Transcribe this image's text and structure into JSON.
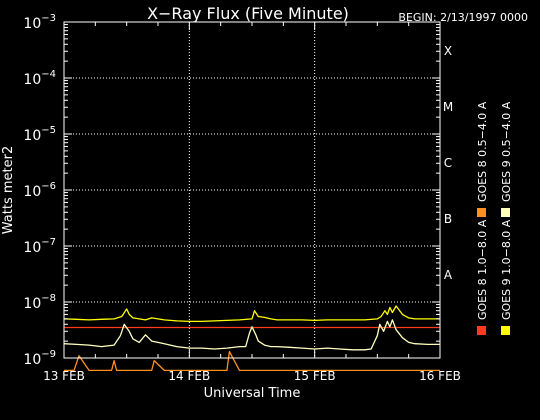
{
  "chart_data": {
    "type": "line",
    "title": "X−Ray Flux (Five Minute)",
    "begin_label": "BEGIN: 2/13/1997 0000",
    "xlabel": "Universal Time",
    "ylabel": "Watts meter2",
    "x_ticks": [
      "13 FEB",
      "14 FEB",
      "15 FEB",
      "16 FEB"
    ],
    "x_range_days": [
      13,
      16
    ],
    "y_scale": "log",
    "ylim": [
      1e-09,
      0.001
    ],
    "y_ticks": [
      {
        "base": "10",
        "exp": "−9",
        "value": 1e-09
      },
      {
        "base": "10",
        "exp": "−8",
        "value": 1e-08
      },
      {
        "base": "10",
        "exp": "−7",
        "value": 1e-07
      },
      {
        "base": "10",
        "exp": "−6",
        "value": 1e-06
      },
      {
        "base": "10",
        "exp": "−5",
        "value": 1e-05
      },
      {
        "base": "10",
        "exp": "−4",
        "value": 0.0001
      },
      {
        "base": "10",
        "exp": "−3",
        "value": 0.001
      }
    ],
    "flare_classes": [
      {
        "label": "A",
        "value": 1e-08
      },
      {
        "label": "B",
        "value": 1e-07
      },
      {
        "label": "C",
        "value": 1e-06
      },
      {
        "label": "M",
        "value": 1e-05
      },
      {
        "label": "X",
        "value": 0.0001
      }
    ],
    "grid": true,
    "series": [
      {
        "name": "GOES 8  1.0−8.0 A",
        "color": "#ff3b1a",
        "x": [
          13.0,
          13.5,
          14.0,
          14.5,
          15.0,
          15.5,
          16.0
        ],
        "y": [
          3.5e-09,
          3.5e-09,
          3.5e-09,
          3.5e-09,
          3.5e-09,
          3.5e-09,
          3.5e-09
        ]
      },
      {
        "name": "GOES 8  0.5−4.0 A",
        "color": "#ff9020",
        "x": [
          13.0,
          13.08,
          13.12,
          13.2,
          13.3,
          13.38,
          13.4,
          13.42,
          13.55,
          13.65,
          13.7,
          13.72,
          13.8,
          14.0,
          14.25,
          14.3,
          14.32,
          14.4,
          14.6,
          15.0,
          15.5,
          16.0
        ],
        "y": [
          6e-10,
          6e-10,
          1.1e-09,
          6e-10,
          6e-10,
          6e-10,
          9e-10,
          6e-10,
          6e-10,
          6e-10,
          6e-10,
          9e-10,
          6e-10,
          6e-10,
          6e-10,
          6e-10,
          1.3e-09,
          6e-10,
          6e-10,
          6e-10,
          6e-10,
          6e-10
        ]
      },
      {
        "name": "GOES 9  1.0−8.0 A",
        "color": "#ffff00",
        "x": [
          13.0,
          13.1,
          13.2,
          13.3,
          13.4,
          13.46,
          13.5,
          13.52,
          13.55,
          13.6,
          13.65,
          13.7,
          13.8,
          13.9,
          14.0,
          14.1,
          14.2,
          14.3,
          14.4,
          14.5,
          14.52,
          14.55,
          14.6,
          14.65,
          14.7,
          14.8,
          14.9,
          15.0,
          15.1,
          15.2,
          15.3,
          15.4,
          15.5,
          15.53,
          15.56,
          15.58,
          15.6,
          15.62,
          15.65,
          15.7,
          15.75,
          15.8,
          15.9,
          16.0
        ],
        "y": [
          5e-09,
          4.9e-09,
          4.8e-09,
          4.9e-09,
          5e-09,
          5.5e-09,
          7.5e-09,
          6e-09,
          5.2e-09,
          5e-09,
          4.8e-09,
          5.2e-09,
          4.8e-09,
          4.6e-09,
          4.5e-09,
          4.5e-09,
          4.6e-09,
          4.7e-09,
          4.8e-09,
          5e-09,
          7e-09,
          5.5e-09,
          5.3e-09,
          5e-09,
          4.8e-09,
          4.8e-09,
          4.8e-09,
          4.7e-09,
          4.8e-09,
          4.8e-09,
          4.8e-09,
          4.8e-09,
          5e-09,
          5.5e-09,
          7e-09,
          6e-09,
          8e-09,
          6.5e-09,
          8.5e-09,
          6e-09,
          5.2e-09,
          5e-09,
          5e-09,
          5e-09
        ]
      },
      {
        "name": "GOES 9  0.5−4.0 A",
        "color": "#ffffc0",
        "x": [
          13.0,
          13.1,
          13.2,
          13.3,
          13.4,
          13.45,
          13.48,
          13.52,
          13.55,
          13.6,
          13.65,
          13.7,
          13.75,
          13.8,
          13.9,
          14.0,
          14.1,
          14.2,
          14.3,
          14.4,
          14.45,
          14.48,
          14.5,
          14.53,
          14.55,
          14.6,
          14.65,
          14.7,
          14.8,
          14.9,
          15.0,
          15.1,
          15.2,
          15.3,
          15.4,
          15.45,
          15.5,
          15.52,
          15.55,
          15.58,
          15.6,
          15.62,
          15.65,
          15.7,
          15.75,
          15.8,
          15.9,
          16.0
        ],
        "y": [
          1.8e-09,
          1.75e-09,
          1.7e-09,
          1.6e-09,
          1.7e-09,
          2.5e-09,
          4e-09,
          3e-09,
          2.2e-09,
          1.9e-09,
          2.6e-09,
          2e-09,
          1.9e-09,
          1.8e-09,
          1.6e-09,
          1.5e-09,
          1.5e-09,
          1.45e-09,
          1.5e-09,
          1.6e-09,
          1.6e-09,
          2.8e-09,
          3.6e-09,
          2.6e-09,
          2e-09,
          1.7e-09,
          1.6e-09,
          1.6e-09,
          1.55e-09,
          1.5e-09,
          1.45e-09,
          1.5e-09,
          1.45e-09,
          1.4e-09,
          1.4e-09,
          1.45e-09,
          2.5e-09,
          4e-09,
          3e-09,
          4.5e-09,
          3.6e-09,
          4.8e-09,
          3.2e-09,
          2.3e-09,
          1.9e-09,
          1.8e-09,
          1.75e-09,
          1.75e-09
        ]
      }
    ]
  }
}
